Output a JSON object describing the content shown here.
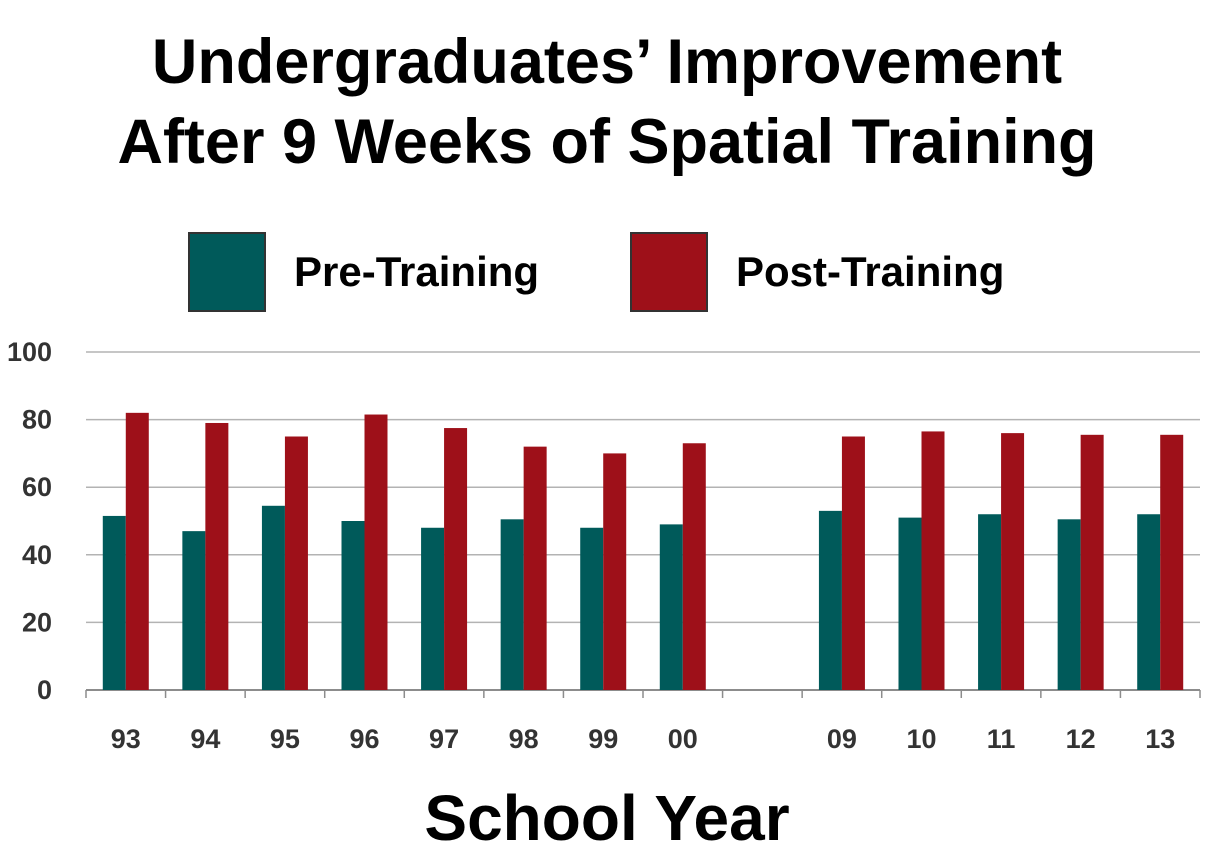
{
  "chart_data": {
    "type": "bar",
    "title_lines": [
      "Undergraduates’ Improvement",
      "After 9 Weeks of Spatial Training"
    ],
    "xlabel": "School Year",
    "ylabel": "",
    "ylim": [
      0,
      100
    ],
    "yticks": [
      0,
      20,
      40,
      60,
      80,
      100
    ],
    "grid": true,
    "legend_position": "top",
    "categories": [
      "93",
      "94",
      "95",
      "96",
      "97",
      "98",
      "99",
      "00",
      "",
      "09",
      "10",
      "11",
      "12",
      "13"
    ],
    "series": [
      {
        "name": "Pre-Training",
        "color": "#005a5a",
        "values": [
          51.5,
          47,
          54.5,
          50,
          48,
          50.5,
          48,
          49,
          null,
          53,
          51,
          52,
          50.5,
          52
        ]
      },
      {
        "name": "Post-Training",
        "color": "#9e1019",
        "values": [
          82,
          79,
          75,
          81.5,
          77.5,
          72,
          70,
          73,
          null,
          75,
          76.5,
          76,
          75.5,
          75.5
        ]
      }
    ]
  }
}
